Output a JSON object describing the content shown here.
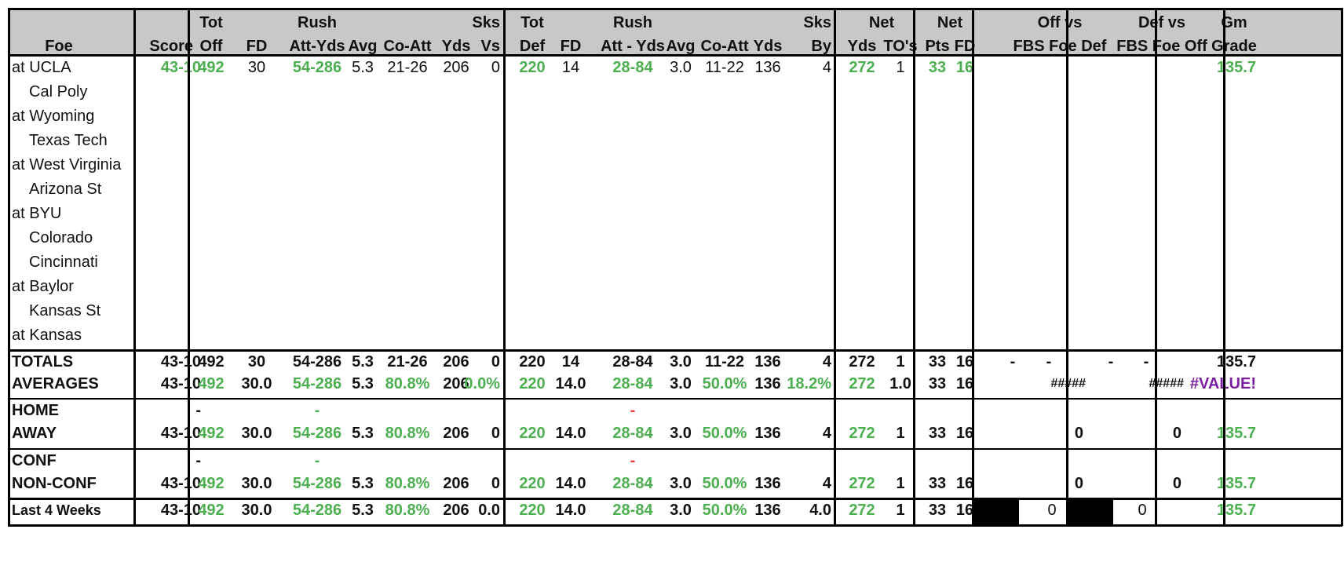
{
  "header": {
    "foe": "Foe",
    "score": "Score",
    "tot_off_1": "Tot",
    "tot_off_2": "Off",
    "fd": "FD",
    "rush_1": "Rush",
    "rush_att_yds": "Att-Yds",
    "avg": "Avg",
    "co_att": "Co-Att",
    "yds": "Yds",
    "sks_vs_1": "Sks",
    "sks_vs_2": "Vs",
    "tot_def_1": "Tot",
    "tot_def_2": "Def",
    "def_fd": "FD",
    "def_rush_1": "Rush",
    "def_rush_att_yds": "Att - Yds",
    "def_avg": "Avg",
    "def_co_att": "Co-Att",
    "def_yds": "Yds",
    "sks_by_1": "Sks",
    "sks_by_2": "By",
    "net_1": "Net",
    "net_yds": "Yds",
    "net_tos": "TO's",
    "net2_1": "Net",
    "net_pts": "Pts",
    "net_fd": "FD",
    "off_vs_1": "Off vs",
    "off_vs_2": "FBS Foe Def",
    "def_vs_1": "Def vs",
    "def_vs_2": "FBS Foe Off",
    "gm_grade_1": "Gm",
    "gm_grade_2": "Grade"
  },
  "games": [
    {
      "foe": "at UCLA",
      "score": "43-10",
      "tot_off": "492",
      "fd": "30",
      "rush": "54-286",
      "avg": "5.3",
      "co_att": "21-26",
      "yds": "206",
      "sks_vs": "0",
      "tot_def": "220",
      "def_fd": "14",
      "def_rush": "28-84",
      "def_avg": "3.0",
      "def_co_att": "11-22",
      "def_yds": "136",
      "sks_by": "4",
      "net_yds": "272",
      "net_to": "1",
      "net_pts": "33",
      "net_fd": "16",
      "grade": "135.7"
    },
    {
      "foe": "Cal Poly"
    },
    {
      "foe": "at Wyoming"
    },
    {
      "foe": "Texas Tech"
    },
    {
      "foe": "at West Virginia"
    },
    {
      "foe": "Arizona St"
    },
    {
      "foe": "at BYU"
    },
    {
      "foe": "Colorado"
    },
    {
      "foe": "Cincinnati"
    },
    {
      "foe": "at Baylor"
    },
    {
      "foe": "Kansas St"
    },
    {
      "foe": "at Kansas"
    }
  ],
  "totals": {
    "label": "TOTALS",
    "score": "43-10",
    "tot_off": "492",
    "fd": "30",
    "rush": "54-286",
    "avg": "5.3",
    "co_att": "21-26",
    "yds": "206",
    "sks_vs": "0",
    "tot_def": "220",
    "def_fd": "14",
    "def_rush": "28-84",
    "def_avg": "3.0",
    "def_co_att": "11-22",
    "def_yds": "136",
    "sks_by": "4",
    "net_yds": "272",
    "net_to": "1",
    "net_pts": "33",
    "net_fd": "16",
    "off_a": "-",
    "off_b": "-",
    "def_a": "-",
    "def_b": "-",
    "grade": "135.7"
  },
  "averages": {
    "label": "AVERAGES",
    "score": "43-10",
    "tot_off": "492",
    "fd": "30.0",
    "rush": "54-286",
    "avg": "5.3",
    "co_att": "80.8%",
    "yds": "206",
    "sks_vs": "0.0%",
    "tot_def": "220",
    "def_fd": "14.0",
    "def_rush": "28-84",
    "def_avg": "3.0",
    "def_co_att": "50.0%",
    "def_yds": "136",
    "sks_by": "18.2%",
    "net_yds": "272",
    "net_to": "1.0",
    "net_pts": "33",
    "net_fd": "16",
    "off_vs": "#####",
    "def_vs": "#####",
    "grade": "#VALUE!"
  },
  "home": {
    "label": "HOME",
    "score": "-",
    "rush": "-",
    "def_rush": "-"
  },
  "away": {
    "label": "AWAY",
    "score": "43-10",
    "tot_off": "492",
    "fd": "30.0",
    "rush": "54-286",
    "avg": "5.3",
    "co_att": "80.8%",
    "yds": "206",
    "sks_vs": "0",
    "tot_def": "220",
    "def_fd": "14.0",
    "def_rush": "28-84",
    "def_avg": "3.0",
    "def_co_att": "50.0%",
    "def_yds": "136",
    "sks_by": "4",
    "net_yds": "272",
    "net_to": "1",
    "net_pts": "33",
    "net_fd": "16",
    "off_vs": "0",
    "def_vs": "0",
    "grade": "135.7"
  },
  "conf": {
    "label": "CONF",
    "score": "-",
    "rush": "-",
    "def_rush": "-"
  },
  "nonconf": {
    "label": "NON-CONF",
    "score": "43-10",
    "tot_off": "492",
    "fd": "30.0",
    "rush": "54-286",
    "avg": "5.3",
    "co_att": "80.8%",
    "yds": "206",
    "sks_vs": "0",
    "tot_def": "220",
    "def_fd": "14.0",
    "def_rush": "28-84",
    "def_avg": "3.0",
    "def_co_att": "50.0%",
    "def_yds": "136",
    "sks_by": "4",
    "net_yds": "272",
    "net_to": "1",
    "net_pts": "33",
    "net_fd": "16",
    "off_vs": "0",
    "def_vs": "0",
    "grade": "135.7"
  },
  "last4": {
    "label": "Last 4 Weeks",
    "score": "43-10",
    "tot_off": "492",
    "fd": "30.0",
    "rush": "54-286",
    "avg": "5.3",
    "co_att": "80.8%",
    "yds": "206",
    "sks_vs": "0.0",
    "tot_def": "220",
    "def_fd": "14.0",
    "def_rush": "28-84",
    "def_avg": "3.0",
    "def_co_att": "50.0%",
    "def_yds": "136",
    "sks_by": "4.0",
    "net_yds": "272",
    "net_to": "1",
    "net_pts": "33",
    "net_fd": "16",
    "off_vs": "0",
    "def_vs": "0",
    "grade": "135.7"
  },
  "colors": {
    "header_bg": "#c8c8c8",
    "good": "#4caf50",
    "bad": "#e53935",
    "error": "#7b1fa2"
  }
}
